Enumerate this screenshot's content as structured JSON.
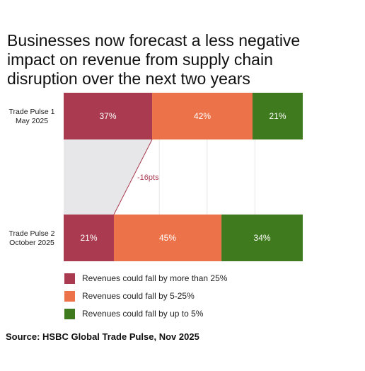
{
  "title": "Businesses now forecast a less negative impact on revenue from supply chain disruption over the next two years",
  "source": "Source: HSBC Global Trade Pulse, Nov 2025",
  "colors": {
    "fall_more_than_25": "#a93a4f",
    "fall_5_25": "#ec7249",
    "fall_up_to_5": "#3f7a1f",
    "connector_fill": "#e7e7e9",
    "connector_line": "#a93a4f",
    "grid": "#e6e6e6",
    "annotation": "#a93a4f"
  },
  "chart_data": {
    "type": "bar",
    "orientation": "horizontal",
    "stacked": true,
    "categories": [
      [
        "Trade Pulse 1",
        "May 2025"
      ],
      [
        "Trade Pulse 2",
        "October 2025"
      ]
    ],
    "series": [
      {
        "name": "Revenues could fall by more than 25%",
        "values": [
          37,
          21
        ],
        "color_key": "fall_more_than_25"
      },
      {
        "name": "Revenues could fall by 5-25%",
        "values": [
          42,
          45
        ],
        "color_key": "fall_5_25"
      },
      {
        "name": "Revenues could fall by up to 5%",
        "values": [
          21,
          34
        ],
        "color_key": "fall_up_to_5"
      }
    ],
    "value_suffix": "%",
    "xlim": [
      0,
      100
    ],
    "annotation": "-16pts",
    "legend_position": "bottom-left"
  }
}
